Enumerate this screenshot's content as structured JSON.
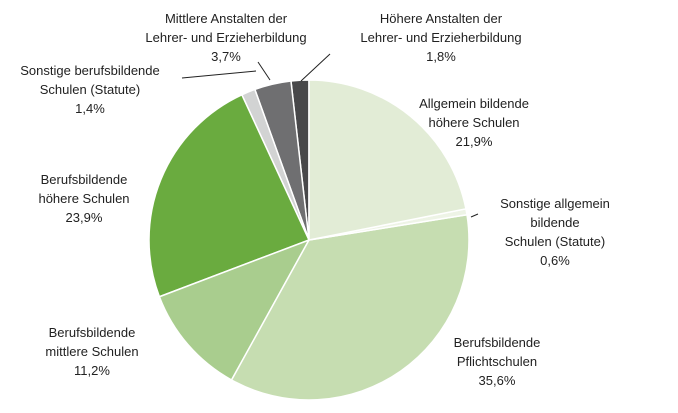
{
  "chart_data": {
    "type": "pie",
    "categories": [
      "Allgemein bildende\nhöhere Schulen",
      "Sonstige allgemein bildende\nSchulen (Statute)",
      "Berufsbildende\nPflichtschulen",
      "Berufsbildende\nmittlere Schulen",
      "Berufsbildende\nhöhere Schulen",
      "Sonstige berufsbildende\nSchulen (Statute)",
      "Mittlere Anstalten der\nLehrer- und Erzieherbildung",
      "Höhere Anstalten der\nLehrer- und Erzieherbildung"
    ],
    "values": [
      21.9,
      0.6,
      35.6,
      11.2,
      23.9,
      1.4,
      3.7,
      1.8
    ],
    "value_labels": [
      "21,9%",
      "0,6%",
      "35,6%",
      "11,2%",
      "23,9%",
      "1,4%",
      "3,7%",
      "1,8%"
    ],
    "colors": [
      "#e2ecd6",
      "#eef4e6",
      "#c6ddb1",
      "#a9cd8e",
      "#6aab3f",
      "#d2d3d3",
      "#6f6f71",
      "#48484a"
    ]
  }
}
